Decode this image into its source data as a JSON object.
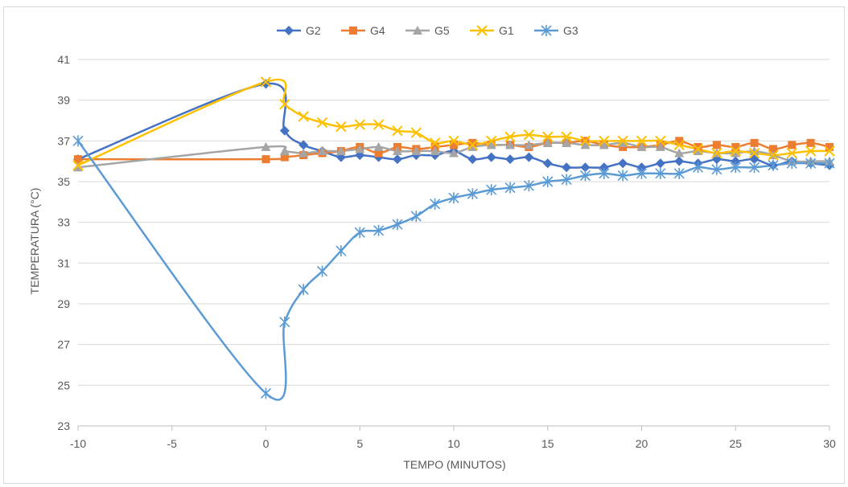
{
  "chart_data": {
    "type": "line",
    "title": "",
    "xlabel": "TEMPO (MINUTOS)",
    "ylabel": "TEMPERATURA (°C)",
    "xlim": [
      -10,
      30
    ],
    "ylim": [
      23,
      41
    ],
    "xticks": [
      -10,
      -5,
      0,
      5,
      10,
      15,
      20,
      25,
      30
    ],
    "yticks": [
      23,
      25,
      27,
      29,
      31,
      33,
      35,
      37,
      39,
      41
    ],
    "x_tick_labels": [
      "-10",
      "-5",
      "0",
      "5",
      "10",
      "15",
      "20",
      "25",
      "30"
    ],
    "y_tick_labels": [
      "23",
      "25",
      "27",
      "29",
      "31",
      "33",
      "35",
      "37",
      "39",
      "41"
    ],
    "grid": "horizontal",
    "legend_position": "top",
    "x": [
      -10,
      0,
      1,
      2,
      3,
      4,
      5,
      6,
      7,
      8,
      9,
      10,
      11,
      12,
      13,
      14,
      15,
      16,
      17,
      18,
      19,
      20,
      21,
      22,
      23,
      24,
      25,
      26,
      27,
      28,
      29,
      30
    ],
    "series": [
      {
        "name": "G2",
        "color": "#4472C4",
        "marker": "diamond",
        "values": [
          36.1,
          39.8,
          37.5,
          36.8,
          36.5,
          36.2,
          36.3,
          36.2,
          36.1,
          36.3,
          36.3,
          36.5,
          36.1,
          36.2,
          36.1,
          36.2,
          35.9,
          35.7,
          35.7,
          35.7,
          35.9,
          35.7,
          35.9,
          36.0,
          35.9,
          36.1,
          36.0,
          36.1,
          35.8,
          36.0,
          35.9,
          35.8
        ]
      },
      {
        "name": "G4",
        "color": "#ED7D31",
        "marker": "square",
        "values": [
          36.1,
          36.1,
          36.2,
          36.3,
          36.4,
          36.5,
          36.7,
          36.4,
          36.7,
          36.6,
          36.7,
          36.8,
          36.9,
          36.8,
          36.8,
          36.7,
          36.9,
          36.9,
          37.0,
          36.8,
          36.7,
          36.7,
          36.8,
          37.0,
          36.7,
          36.8,
          36.7,
          36.9,
          36.6,
          36.8,
          36.9,
          36.7
        ]
      },
      {
        "name": "G5",
        "color": "#A5A5A5",
        "marker": "triangle",
        "values": [
          35.7,
          36.7,
          36.5,
          36.4,
          36.5,
          36.5,
          36.6,
          36.7,
          36.5,
          36.5,
          36.5,
          36.4,
          36.7,
          36.8,
          36.8,
          36.8,
          36.9,
          36.9,
          36.8,
          36.8,
          36.9,
          36.7,
          36.7,
          36.4,
          36.5,
          36.4,
          36.4,
          36.5,
          36.3,
          36.0,
          36.0,
          36.0
        ]
      },
      {
        "name": "G1",
        "color": "#FFC000",
        "marker": "x",
        "values": [
          35.8,
          39.9,
          38.8,
          38.2,
          37.9,
          37.7,
          37.8,
          37.8,
          37.5,
          37.4,
          36.9,
          37.0,
          36.8,
          37.0,
          37.2,
          37.3,
          37.2,
          37.2,
          37.0,
          37.0,
          37.0,
          37.0,
          37.0,
          36.8,
          36.6,
          36.4,
          36.5,
          36.4,
          36.3,
          36.4,
          36.5,
          36.5
        ]
      },
      {
        "name": "G3",
        "color": "#5B9BD5",
        "marker": "star",
        "values": [
          37.0,
          24.6,
          28.1,
          29.7,
          30.6,
          31.6,
          32.5,
          32.6,
          32.9,
          33.3,
          33.9,
          34.2,
          34.4,
          34.6,
          34.7,
          34.8,
          35.0,
          35.1,
          35.3,
          35.4,
          35.3,
          35.4,
          35.4,
          35.4,
          35.7,
          35.6,
          35.7,
          35.7,
          35.8,
          35.9,
          35.9,
          35.9
        ]
      }
    ]
  }
}
